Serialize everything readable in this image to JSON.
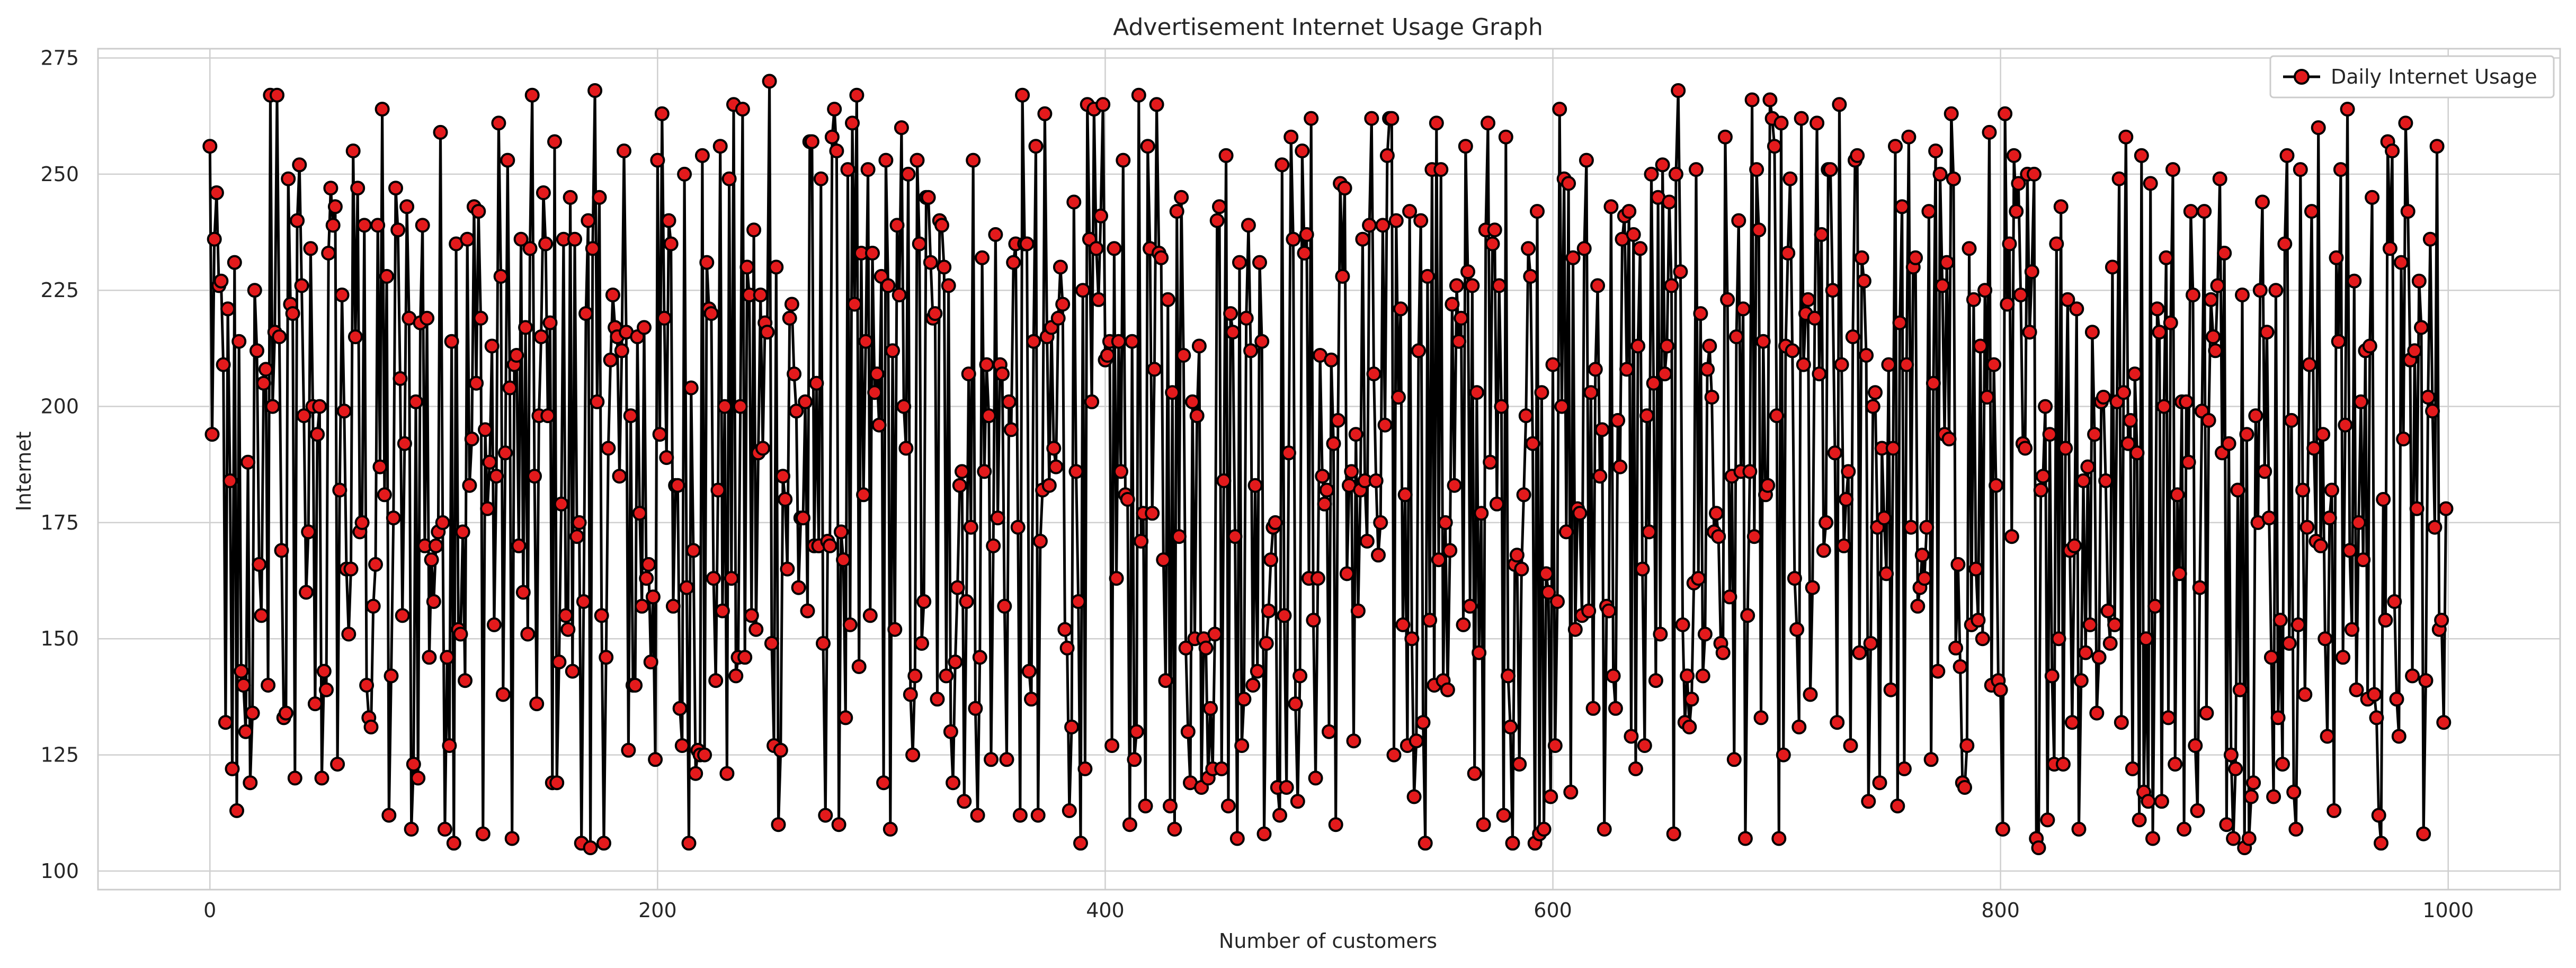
{
  "chart_data": {
    "type": "line",
    "title": "Advertisement Internet Usage Graph",
    "xlabel": "Number of customers",
    "ylabel": "Internet",
    "xlim": [
      -50,
      1050
    ],
    "ylim": [
      96,
      277
    ],
    "xticks": [
      0,
      200,
      400,
      600,
      800,
      1000
    ],
    "yticks": [
      100,
      125,
      150,
      175,
      200,
      225,
      250,
      275
    ],
    "grid": true,
    "legend": {
      "position": "top-right",
      "entries": [
        "Daily Internet Usage"
      ]
    },
    "series": [
      {
        "name": "Daily Internet Usage",
        "color": "#e31a1c",
        "line_color": "#000000",
        "marker": "circle",
        "n_points": 1000,
        "sample_indices": [
          0,
          1,
          2,
          3,
          4,
          5,
          6,
          7,
          8,
          9,
          10,
          11,
          12,
          13,
          14,
          15,
          16,
          17,
          18,
          19,
          20,
          22,
          24,
          26,
          28,
          30,
          32,
          34,
          36,
          38,
          40,
          42,
          44,
          46,
          48,
          50,
          55,
          60,
          65,
          70,
          75,
          80,
          85,
          90,
          95,
          100,
          110,
          120,
          130,
          140,
          150,
          160,
          170,
          180,
          190,
          200,
          210,
          220,
          230,
          240,
          250,
          260,
          270,
          280,
          290,
          300,
          310,
          320,
          330,
          340,
          350,
          360,
          370,
          380,
          390,
          400,
          410,
          420,
          430,
          440,
          450,
          460,
          470,
          480,
          490,
          500,
          510,
          520,
          530,
          540,
          550,
          560,
          570,
          580,
          590,
          600,
          610,
          620,
          630,
          640,
          650,
          660,
          670,
          680,
          690,
          700,
          710,
          720,
          730,
          740,
          750,
          760,
          770,
          780,
          790,
          800,
          810,
          820,
          830,
          840,
          850,
          860,
          870,
          880,
          890,
          900,
          910,
          920,
          930,
          940,
          950,
          960,
          970,
          980,
          990,
          999
        ],
        "sample_values": [
          256,
          194,
          236,
          246,
          226,
          227,
          209,
          132,
          221,
          184,
          122,
          231,
          113,
          214,
          143,
          140,
          130,
          188,
          119,
          134,
          225,
          166,
          205,
          140,
          200,
          267,
          169,
          134,
          222,
          120,
          252,
          198,
          173,
          200,
          194,
          120,
          239,
          199,
          215,
          140,
          239,
          112,
          206,
          109,
          239,
          158,
          235,
          242,
          228,
          160,
          235,
          152,
          105,
          224,
          140,
          253,
          135,
          254,
          200,
          230,
          270,
          222,
          170,
          255,
          144,
          228,
          200,
          245,
          226,
          174,
          170,
          235,
          112,
          230,
          225,
          210,
          180,
          234,
          203,
          150,
          240,
          231,
          214,
          155,
          237,
          130,
          186,
          207,
          240,
          212,
          251,
          153,
          238,
          142,
          228,
          209,
          152,
          226,
          187,
          165,
          207,
          142,
          213,
          185,
          172,
          198,
          131,
          237,
          170,
          211,
          209,
          174,
          205,
          148,
          154,
          139,
          192,
          200,
          223,
          153,
          230,
          207,
          221,
          164,
          199,
          233,
          194,
          176,
          197,
          191,
          232,
          175,
          106,
          193,
          141,
          178
        ],
        "note": "1000 daily internet usage values (~105-270); sample_indices/sample_values are read from the figure; intermediate points fill the same range"
      }
    ]
  }
}
